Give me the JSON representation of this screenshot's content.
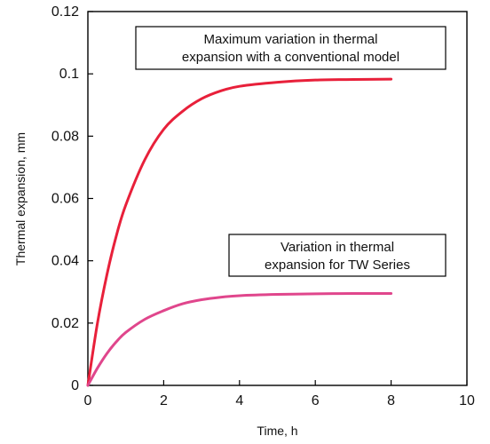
{
  "chart_data": {
    "type": "line",
    "xlabel": "Time, h",
    "ylabel": "Thermal expansion, mm",
    "xlim": [
      0,
      10
    ],
    "ylim": [
      0,
      0.12
    ],
    "x_ticks": [
      "0",
      "2",
      "4",
      "6",
      "8",
      "10"
    ],
    "y_ticks": [
      "0",
      "0.02",
      "0.04",
      "0.06",
      "0.08",
      "0.1",
      "0.12"
    ],
    "grid": false,
    "series": [
      {
        "color": "#e8203a",
        "x": [
          0,
          0.25,
          0.5,
          0.75,
          1,
          1.5,
          2,
          2.5,
          3,
          3.5,
          4,
          5,
          6,
          7,
          8
        ],
        "y": [
          0,
          0.0198,
          0.0354,
          0.048,
          0.0579,
          0.0724,
          0.0822,
          0.088,
          0.092,
          0.0945,
          0.096,
          0.0973,
          0.098,
          0.0982,
          0.0983
        ]
      },
      {
        "color": "#e0468c",
        "x": [
          0,
          0.25,
          0.5,
          0.75,
          1,
          1.5,
          2,
          2.5,
          3,
          3.5,
          4,
          5,
          6,
          7,
          8
        ],
        "y": [
          0,
          0.0055,
          0.0102,
          0.014,
          0.017,
          0.0212,
          0.024,
          0.0262,
          0.0275,
          0.0283,
          0.0288,
          0.0292,
          0.0294,
          0.0295,
          0.0295
        ]
      }
    ],
    "annotations": [
      {
        "lines": [
          "Maximum variation in thermal",
          "expansion with a conventional model"
        ]
      },
      {
        "lines": [
          "Variation in thermal",
          "expansion for TW Series"
        ]
      }
    ]
  }
}
